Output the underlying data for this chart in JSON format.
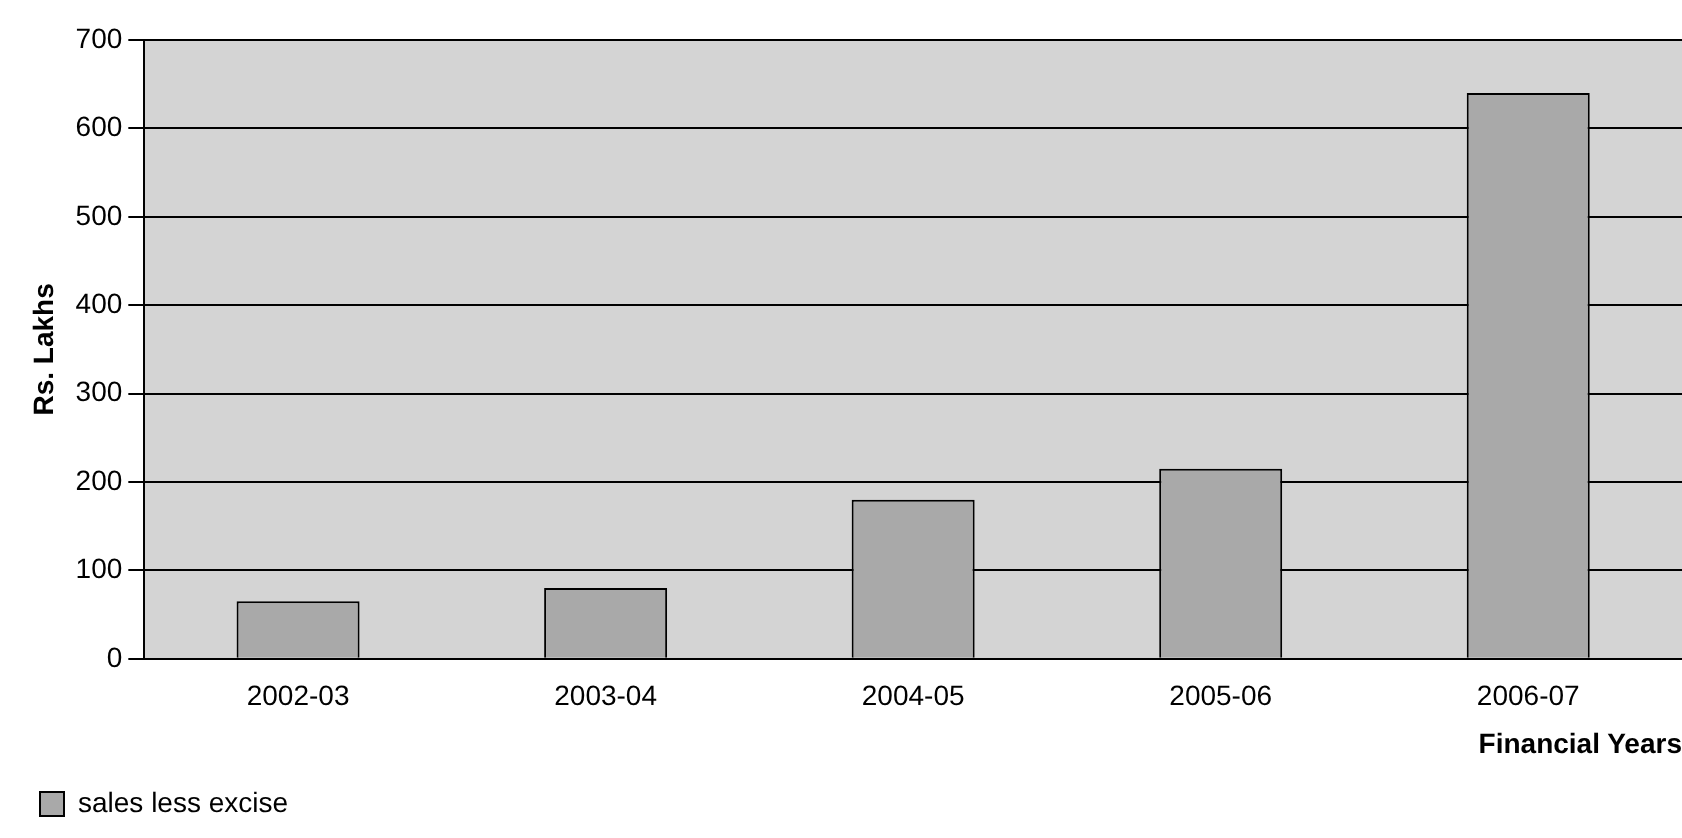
{
  "chart_data": {
    "type": "bar",
    "xlabel": "Financial Years",
    "ylabel": "Rs. Lakhs",
    "categories": [
      "2002-03",
      "2003-04",
      "2004-05",
      "2005-06",
      "2006-07"
    ],
    "series": [
      {
        "name": "sales less excise",
        "color": "#a9a9a9",
        "values": [
          65,
          80,
          180,
          215,
          640
        ]
      }
    ],
    "ylim": [
      0,
      700
    ],
    "yticks": [
      0,
      100,
      200,
      300,
      400,
      500,
      600,
      700
    ],
    "grid": "y",
    "legend": "bottom left"
  }
}
